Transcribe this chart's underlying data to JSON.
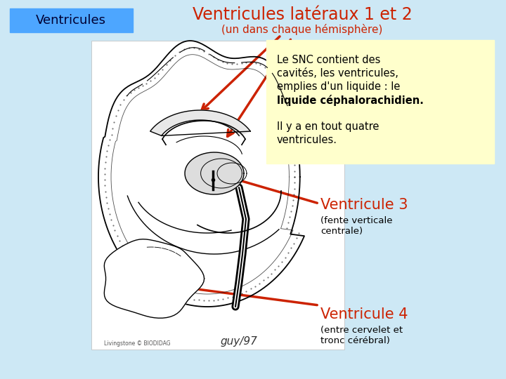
{
  "bg_color": "#cde8f5",
  "title_label_bg": "#4da6ff",
  "title_label_text": "Ventricules",
  "title_label_text_color": "#000033",
  "title_label_fontsize": 13,
  "heading_text": "Ventricules latéraux 1 et 2",
  "heading_subtext": "(un dans chaque hémisphère)",
  "heading_color": "#cc2200",
  "heading_fontsize": 17,
  "heading_sub_fontsize": 11,
  "info_box_bg": "#ffffcc",
  "info_lines_normal": [
    "Le SNC contient des",
    "cavités, les ventricules,",
    "emplies d'un liquide : le"
  ],
  "info_line_bold": "liquide céphalorachidien.",
  "info_lines_extra": [
    "Il y a en tout quatre",
    "ventricules."
  ],
  "info_text_color": "#000000",
  "info_fontsize": 10.5,
  "v3_label": "Ventricule 3",
  "v3_sub": "(fente verticale\ncentrale)",
  "v4_label": "Ventricule 4",
  "v4_sub": "(entre cervelet et\ntronc cérébral)",
  "label_color": "#cc2200",
  "sub_color": "#000000",
  "label_fontsize": 15,
  "sub_fontsize": 9.5,
  "arrow_color": "#cc2200",
  "brain_bg": "#ffffff",
  "copyright_text": "Livingstone © BIODIDAG",
  "signature_text": "guy/97"
}
